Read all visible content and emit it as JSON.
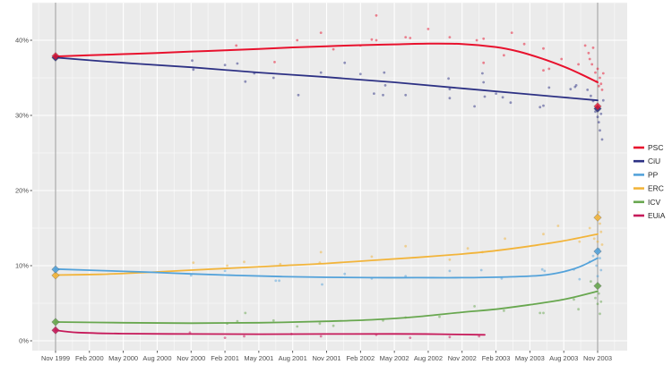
{
  "chart_data": {
    "type": "scatter",
    "title": "",
    "xlabel": "",
    "ylabel": "",
    "x_unit_months_since": "Nov 1999",
    "x_ticks": [
      {
        "label": "Nov 1999",
        "month": 0
      },
      {
        "label": "Feb 2000",
        "month": 3
      },
      {
        "label": "May 2000",
        "month": 6
      },
      {
        "label": "Aug 2000",
        "month": 9
      },
      {
        "label": "Nov 2000",
        "month": 12
      },
      {
        "label": "Feb 2001",
        "month": 15
      },
      {
        "label": "May 2001",
        "month": 18
      },
      {
        "label": "Aug 2001",
        "month": 21
      },
      {
        "label": "Nov 2001",
        "month": 24
      },
      {
        "label": "Feb 2002",
        "month": 27
      },
      {
        "label": "May 2002",
        "month": 30
      },
      {
        "label": "Aug 2002",
        "month": 33
      },
      {
        "label": "Nov 2002",
        "month": 36
      },
      {
        "label": "Feb 2003",
        "month": 39
      },
      {
        "label": "May 2003",
        "month": 42
      },
      {
        "label": "Aug 2003",
        "month": 45
      },
      {
        "label": "Nov 2003",
        "month": 48
      }
    ],
    "y_ticks": [
      {
        "label": "0%",
        "value": 0
      },
      {
        "label": "10%",
        "value": 10
      },
      {
        "label": "20%",
        "value": 20
      },
      {
        "label": "30%",
        "value": 30
      },
      {
        "label": "40%",
        "value": 40
      }
    ],
    "y_minor_ticks": [
      5,
      15,
      25,
      35,
      45
    ],
    "ylim": [
      -1.3,
      45
    ],
    "xlim_months": [
      -2.1,
      50.6
    ],
    "grid": "on",
    "legend_position": "right",
    "election_marker_months": [
      0,
      48
    ],
    "style": {
      "plot_background": "#ebebeb",
      "grid_major": "#ffffff",
      "grid_minor": "#f7f7f7",
      "election_line": "#9b9b9b",
      "axis_text": "#4d4d4d",
      "legend_text": "#262626"
    },
    "series": [
      {
        "name": "ICV",
        "color": "#68a74f",
        "result_1999": 2.5,
        "result_2003": 7.3,
        "trend": [
          [
            0,
            2.5
          ],
          [
            6,
            2.4
          ],
          [
            12,
            2.35
          ],
          [
            18,
            2.4
          ],
          [
            24,
            2.6
          ],
          [
            28,
            2.8
          ],
          [
            32,
            3.2
          ],
          [
            36,
            3.8
          ],
          [
            39,
            4.2
          ],
          [
            42,
            4.8
          ],
          [
            45,
            5.5
          ],
          [
            48,
            6.6
          ]
        ],
        "polls": [
          [
            15.2,
            2.3
          ],
          [
            16.1,
            2.6
          ],
          [
            16.8,
            3.7
          ],
          [
            19.3,
            2.7
          ],
          [
            21.4,
            1.9
          ],
          [
            23.4,
            2.3
          ],
          [
            24.6,
            2.0
          ],
          [
            29,
            2.7
          ],
          [
            31,
            3.1
          ],
          [
            34,
            3.2
          ],
          [
            37.1,
            4.6
          ],
          [
            39.7,
            4.0
          ],
          [
            42.9,
            3.7
          ],
          [
            43.2,
            3.7
          ],
          [
            45.9,
            5.5
          ],
          [
            46.3,
            4.2
          ],
          [
            47.4,
            7.9
          ],
          [
            47.8,
            5.7
          ],
          [
            48.0,
            4.9
          ],
          [
            48.1,
            6.3
          ],
          [
            48.2,
            3.6
          ],
          [
            48.3,
            5.2
          ]
        ]
      },
      {
        "name": "EUiA",
        "color": "#c61a5a",
        "result_1999": 1.4,
        "result_2003": null,
        "trend": [
          [
            0,
            1.4
          ],
          [
            2,
            1.1
          ],
          [
            6,
            0.95
          ],
          [
            12,
            0.9
          ],
          [
            18,
            0.88
          ],
          [
            24,
            0.9
          ],
          [
            30,
            0.92
          ],
          [
            34,
            0.88
          ],
          [
            38,
            0.8
          ]
        ],
        "polls": [
          [
            11.9,
            1.1
          ],
          [
            15,
            0.4
          ],
          [
            16.7,
            0.6
          ],
          [
            20.9,
            0.9
          ],
          [
            23.5,
            0.6
          ],
          [
            28.4,
            0.8
          ],
          [
            31.4,
            0.4
          ],
          [
            34.9,
            0.5
          ],
          [
            37.5,
            0.6
          ]
        ]
      },
      {
        "name": "ERC",
        "color": "#f2b43a",
        "result_1999": 8.7,
        "result_2003": 16.4,
        "trend": [
          [
            0,
            8.75
          ],
          [
            4,
            8.85
          ],
          [
            8,
            9.1
          ],
          [
            12,
            9.4
          ],
          [
            16,
            9.7
          ],
          [
            20,
            10.0
          ],
          [
            24,
            10.3
          ],
          [
            28,
            10.7
          ],
          [
            32,
            11.1
          ],
          [
            36,
            11.55
          ],
          [
            39,
            12.0
          ],
          [
            42,
            12.6
          ],
          [
            45,
            13.3
          ],
          [
            48,
            14.2
          ]
        ],
        "polls": [
          [
            12.2,
            10.4
          ],
          [
            15.2,
            10.0
          ],
          [
            16.7,
            10.5
          ],
          [
            19.9,
            10.2
          ],
          [
            23.4,
            10.4
          ],
          [
            23.5,
            11.8
          ],
          [
            28,
            11.2
          ],
          [
            31,
            12.6
          ],
          [
            34.9,
            10.8
          ],
          [
            36.5,
            12.3
          ],
          [
            37.8,
            11.8
          ],
          [
            39.8,
            13.6
          ],
          [
            43.2,
            14.2
          ],
          [
            44.5,
            15.3
          ],
          [
            46.4,
            13.2
          ],
          [
            47.3,
            15.0
          ],
          [
            47.7,
            13.6
          ],
          [
            48.0,
            13.2
          ],
          [
            48.1,
            17.1
          ],
          [
            48.2,
            15.6
          ],
          [
            48.3,
            14.5
          ],
          [
            48.4,
            12.8
          ]
        ]
      },
      {
        "name": "PP",
        "color": "#53a2da",
        "result_1999": 9.5,
        "result_2003": 11.9,
        "trend": [
          [
            0,
            9.55
          ],
          [
            4,
            9.35
          ],
          [
            8,
            9.15
          ],
          [
            12,
            8.9
          ],
          [
            16,
            8.7
          ],
          [
            20,
            8.55
          ],
          [
            24,
            8.45
          ],
          [
            28,
            8.4
          ],
          [
            32,
            8.4
          ],
          [
            36,
            8.4
          ],
          [
            40,
            8.5
          ],
          [
            43,
            8.7
          ],
          [
            45,
            9.2
          ],
          [
            46.5,
            9.9
          ],
          [
            48,
            11.0
          ]
        ],
        "polls": [
          [
            12,
            8.7
          ],
          [
            15,
            9.3
          ],
          [
            19.5,
            8.0
          ],
          [
            19.8,
            8.0
          ],
          [
            23.6,
            7.5
          ],
          [
            25.6,
            8.9
          ],
          [
            28,
            8.3
          ],
          [
            31,
            8.6
          ],
          [
            34.9,
            9.3
          ],
          [
            37.7,
            9.4
          ],
          [
            39.5,
            8.3
          ],
          [
            43.1,
            9.5
          ],
          [
            43.3,
            9.3
          ],
          [
            45.9,
            9.5
          ],
          [
            46.4,
            8.2
          ],
          [
            47.3,
            10.5
          ],
          [
            47.6,
            11.3
          ],
          [
            47.9,
            10.0
          ],
          [
            48.0,
            8.6
          ],
          [
            48.1,
            12.2
          ],
          [
            48.2,
            11.0
          ],
          [
            48.3,
            9.4
          ]
        ]
      },
      {
        "name": "CiU",
        "color": "#2d3184",
        "result_1999": 37.7,
        "result_2003": 30.9,
        "trend": [
          [
            0,
            37.7
          ],
          [
            6,
            37.0
          ],
          [
            12,
            36.4
          ],
          [
            18,
            35.7
          ],
          [
            24,
            35.1
          ],
          [
            30,
            34.4
          ],
          [
            36,
            33.6
          ],
          [
            42,
            32.8
          ],
          [
            48,
            32.0
          ]
        ],
        "polls": [
          [
            12.1,
            37.3
          ],
          [
            12.2,
            36.1
          ],
          [
            15,
            36.7
          ],
          [
            16.1,
            36.9
          ],
          [
            16.8,
            34.5
          ],
          [
            17.6,
            35.6
          ],
          [
            19.3,
            35.0
          ],
          [
            21.5,
            32.7
          ],
          [
            23.5,
            35.7
          ],
          [
            25.6,
            37.0
          ],
          [
            27,
            35.5
          ],
          [
            28.2,
            32.9
          ],
          [
            29,
            32.7
          ],
          [
            29.1,
            35.7
          ],
          [
            29.2,
            34.0
          ],
          [
            31,
            32.7
          ],
          [
            34.8,
            34.9
          ],
          [
            34.9,
            33.5
          ],
          [
            34.9,
            32.3
          ],
          [
            37.1,
            31.2
          ],
          [
            37.8,
            35.6
          ],
          [
            37.9,
            34.4
          ],
          [
            38,
            32.5
          ],
          [
            39,
            32.9
          ],
          [
            39.6,
            32.4
          ],
          [
            40.3,
            31.7
          ],
          [
            42.9,
            31.1
          ],
          [
            43.2,
            31.3
          ],
          [
            43.7,
            33.7
          ],
          [
            45.6,
            33.5
          ],
          [
            46,
            33.8
          ],
          [
            46.1,
            34.0
          ],
          [
            47.1,
            33.4
          ],
          [
            47.4,
            32.6
          ],
          [
            47.6,
            31.9
          ],
          [
            47.8,
            30.5
          ],
          [
            48.0,
            29.8
          ],
          [
            48.1,
            29.1
          ],
          [
            48.2,
            28.0
          ],
          [
            48.3,
            30.2
          ],
          [
            48.4,
            26.8
          ],
          [
            48.5,
            32.0
          ]
        ]
      },
      {
        "name": "PSC",
        "color": "#e8112d",
        "result_1999": 37.9,
        "result_2003": 31.2,
        "trend": [
          [
            0,
            37.85
          ],
          [
            3,
            38.0
          ],
          [
            6,
            38.15
          ],
          [
            9,
            38.3
          ],
          [
            12,
            38.5
          ],
          [
            15,
            38.65
          ],
          [
            18,
            38.85
          ],
          [
            21,
            39.05
          ],
          [
            24,
            39.2
          ],
          [
            27,
            39.35
          ],
          [
            30,
            39.45
          ],
          [
            33,
            39.55
          ],
          [
            36,
            39.5
          ],
          [
            39,
            39.1
          ],
          [
            41,
            38.5
          ],
          [
            43,
            37.6
          ],
          [
            45,
            36.5
          ],
          [
            46.5,
            35.5
          ],
          [
            48,
            34.4
          ]
        ],
        "polls": [
          [
            16,
            39.3
          ],
          [
            19.4,
            37.1
          ],
          [
            21.4,
            40.0
          ],
          [
            23.5,
            41.0
          ],
          [
            24.6,
            38.8
          ],
          [
            27,
            39.3
          ],
          [
            28,
            40.1
          ],
          [
            28.4,
            40.0
          ],
          [
            28.4,
            43.3
          ],
          [
            31,
            40.4
          ],
          [
            31.4,
            40.3
          ],
          [
            33,
            41.5
          ],
          [
            34.9,
            40.4
          ],
          [
            37.3,
            40.0
          ],
          [
            37.9,
            40.2
          ],
          [
            37.9,
            37.0
          ],
          [
            39.7,
            38.0
          ],
          [
            40.4,
            41.0
          ],
          [
            41.5,
            39.5
          ],
          [
            43.2,
            38.9
          ],
          [
            43.2,
            36.0
          ],
          [
            43.7,
            36.2
          ],
          [
            44.8,
            37.5
          ],
          [
            46.3,
            36.8
          ],
          [
            46.9,
            39.3
          ],
          [
            47.2,
            38.3
          ],
          [
            47.3,
            37.5
          ],
          [
            47.5,
            36.8
          ],
          [
            47.6,
            39.0
          ],
          [
            47.8,
            35.7
          ],
          [
            47.9,
            34.5
          ],
          [
            48.0,
            36.2
          ],
          [
            48.1,
            33.9
          ],
          [
            48.2,
            35.0
          ],
          [
            48.3,
            34.2
          ],
          [
            48.4,
            33.4
          ],
          [
            48.5,
            35.6
          ]
        ]
      }
    ],
    "legend_order": [
      "PSC",
      "CiU",
      "PP",
      "ERC",
      "ICV",
      "EUiA"
    ]
  }
}
